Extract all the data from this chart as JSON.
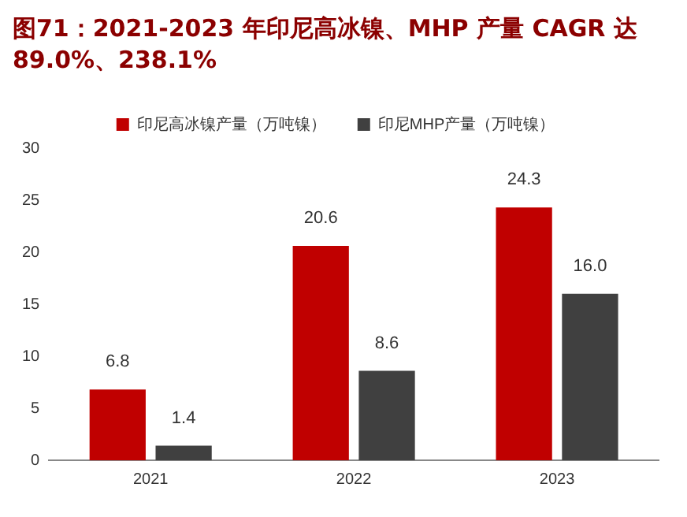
{
  "chart_data": {
    "type": "bar",
    "title": "图71：2021-2023 年印尼高冰镍、MHP 产量 CAGR 达 89.0%、238.1%",
    "categories": [
      "2021",
      "2022",
      "2023"
    ],
    "series": [
      {
        "name": "印尼高冰镍产量（万吨镍）",
        "color": "#c00000",
        "values": [
          6.8,
          20.6,
          24.3
        ],
        "value_labels": [
          "6.8",
          "20.6",
          "24.3"
        ]
      },
      {
        "name": "印尼MHP产量（万吨镍）",
        "color": "#404040",
        "values": [
          1.4,
          8.6,
          16.0
        ],
        "value_labels": [
          "1.4",
          "8.6",
          "16.0"
        ]
      }
    ],
    "ylim": [
      0,
      30
    ],
    "yticks": [
      0,
      5,
      10,
      15,
      20,
      25,
      30
    ],
    "grid": false,
    "legend": "top"
  }
}
